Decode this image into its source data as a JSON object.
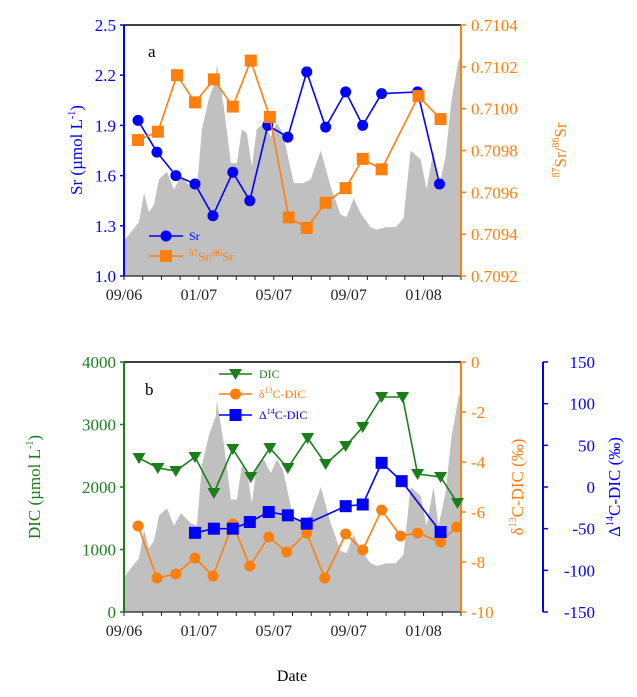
{
  "colors": {
    "blue": "#0000ff",
    "orange": "#ff7f0e",
    "green": "#1a7f1a",
    "gray_fill": "#c0c0c0",
    "axis_black": "#000000"
  },
  "shared_x": {
    "type": "date_months",
    "start": "09/06",
    "end": "03/08",
    "range_months": [
      0,
      18
    ],
    "tick_labels": [
      "09/06",
      "01/07",
      "05/07",
      "09/07",
      "01/08"
    ],
    "tick_label_months": [
      0,
      4,
      8,
      12,
      16
    ],
    "minor_ticks": "monthly",
    "xlabel": "Date"
  },
  "background_series": {
    "description": "gray shaded area (relative magnitude, no axis shown)",
    "x_months": [
      0,
      0.37,
      0.8,
      1.07,
      1.33,
      1.6,
      1.87,
      2.29,
      2.67,
      3.04,
      3.57,
      3.89,
      4.16,
      4.53,
      4.91,
      4.96,
      5.33,
      5.71,
      6.03,
      6.29,
      6.56,
      6.83,
      7.09,
      7.47,
      7.84,
      8.16,
      8.48,
      9.07,
      9.6,
      9.97,
      10.51,
      11.04,
      11.57,
      11.89,
      12.27,
      12.64,
      13.17,
      13.49,
      14.03,
      14.51,
      14.93,
      15.31,
      15.84,
      16.16,
      16.53,
      16.8,
      17.17,
      17.49,
      17.87,
      18
    ],
    "relative_values": [
      0.14,
      0.175,
      0.215,
      0.33,
      0.255,
      0.285,
      0.385,
      0.415,
      0.345,
      0.395,
      0.355,
      0.345,
      0.585,
      0.705,
      0.785,
      0.845,
      0.675,
      0.45,
      0.45,
      0.585,
      0.57,
      0.435,
      0.585,
      0.61,
      0.555,
      0.61,
      0.57,
      0.37,
      0.37,
      0.385,
      0.5,
      0.355,
      0.245,
      0.235,
      0.31,
      0.25,
      0.195,
      0.185,
      0.195,
      0.195,
      0.23,
      0.5,
      0.465,
      0.345,
      0.5,
      0.345,
      0.475,
      0.7,
      0.86,
      0.88
    ]
  },
  "chart_data": [
    {
      "type": "line",
      "panel_label": "a",
      "title": "",
      "xlabel": "",
      "x_tick_labels": [
        "09/06",
        "01/07",
        "05/07",
        "09/07",
        "01/08"
      ],
      "y_left": {
        "label_main": "Sr (µmol L",
        "label_sup": "-1",
        "label_end": ")",
        "range": [
          1.0,
          2.5
        ],
        "ticks": [
          1.0,
          1.3,
          1.6,
          1.9,
          2.2,
          2.5
        ],
        "tick_labels": [
          "1.0",
          "1.3",
          "1.6",
          "1.9",
          "2.2",
          "2.5"
        ],
        "color": "#0000ff"
      },
      "y_right": {
        "label_sup1": "87",
        "label_mid": "Sr/",
        "label_sup2": "86",
        "label_end": "Sr",
        "range": [
          0.7092,
          0.7104
        ],
        "ticks": [
          0.7092,
          0.7094,
          0.7096,
          0.7098,
          0.71,
          0.7102,
          0.7104
        ],
        "tick_labels": [
          "0.7092",
          "0.7094",
          "0.7096",
          "0.7098",
          "0.7100",
          "0.7102",
          "0.7104"
        ],
        "color": "#ff7f0e"
      },
      "series": [
        {
          "name": "Sr",
          "legend_label": "Sr",
          "axis": "left",
          "marker": "circle",
          "color": "#0000ff",
          "x_months": [
            0.75,
            1.76,
            2.77,
            3.79,
            4.75,
            5.81,
            6.72,
            7.68,
            8.75,
            9.76,
            10.77,
            11.84,
            12.75,
            13.76,
            15.68,
            16.85
          ],
          "values": [
            1.93,
            1.74,
            1.6,
            1.55,
            1.36,
            1.62,
            1.45,
            1.9,
            1.83,
            2.22,
            1.89,
            2.1,
            1.9,
            2.09,
            2.1,
            1.55
          ]
        },
        {
          "name": "87Sr/86Sr",
          "legend_label_sup1": "87",
          "legend_label_mid": "Sr/",
          "legend_label_sup2": "86",
          "legend_label_end": "Sr",
          "axis": "right",
          "marker": "square",
          "color": "#ff7f0e",
          "x_months": [
            0.75,
            1.81,
            2.83,
            3.79,
            4.8,
            5.81,
            6.77,
            7.79,
            8.8,
            9.76,
            10.77,
            11.84,
            12.75,
            13.76,
            15.73,
            16.91
          ],
          "values": [
            0.70985,
            0.70989,
            0.71016,
            0.71003,
            0.71014,
            0.71001,
            0.71023,
            0.70996,
            0.70948,
            0.70943,
            0.70955,
            0.70962,
            0.70976,
            0.70971,
            0.71006,
            0.70995
          ]
        }
      ],
      "legend": {
        "position": "bottom-left"
      }
    },
    {
      "type": "line",
      "panel_label": "b",
      "title": "",
      "xlabel": "Date",
      "x_tick_labels": [
        "09/06",
        "01/07",
        "05/07",
        "09/07",
        "01/08"
      ],
      "y_left": {
        "label_main": "DIC (µmol L",
        "label_sup": "-1",
        "label_end": ")",
        "range": [
          0,
          4000
        ],
        "ticks": [
          0,
          1000,
          2000,
          3000,
          4000
        ],
        "tick_labels": [
          "0",
          "1000",
          "2000",
          "3000",
          "4000"
        ],
        "color": "#1a7f1a"
      },
      "y_right": {
        "label_pre": "δ",
        "label_sup": "13",
        "label_end": "C-DIC (‰)",
        "range": [
          -10,
          0
        ],
        "ticks": [
          -10,
          -8,
          -6,
          -4,
          -2,
          0
        ],
        "tick_labels": [
          "-10",
          "-8",
          "-6",
          "-4",
          "-2",
          "0"
        ],
        "color": "#ff7f0e"
      },
      "y_right2": {
        "label_pre": "Δ",
        "label_sup": "14",
        "label_end": "C-DIC (‰)",
        "range": [
          -150,
          150
        ],
        "ticks": [
          -150,
          -100,
          -50,
          0,
          50,
          100,
          150
        ],
        "tick_labels": [
          "-150",
          "-100",
          "-50",
          "0",
          "50",
          "100",
          "150"
        ],
        "color": "#0000ff"
      },
      "series": [
        {
          "name": "DIC",
          "legend_label": "DIC",
          "axis": "left",
          "marker": "triangle-down",
          "color": "#1a7f1a",
          "x_months": [
            0.8,
            1.81,
            2.77,
            3.79,
            4.8,
            5.81,
            6.77,
            7.79,
            8.75,
            9.81,
            10.77,
            11.84,
            12.75,
            13.76,
            14.88,
            15.68,
            16.91,
            17.81
          ],
          "values": [
            2464,
            2304,
            2256,
            2480,
            1904,
            2608,
            2160,
            2624,
            2304,
            2784,
            2368,
            2656,
            2960,
            3440,
            3440,
            2208,
            2160,
            1744
          ]
        },
        {
          "name": "δ13C-DIC",
          "legend_pre": "δ",
          "legend_sup": "13",
          "legend_end": "C-DIC",
          "axis": "right",
          "marker": "circle",
          "color": "#ff7f0e",
          "x_months": [
            0.75,
            1.76,
            2.77,
            3.79,
            4.75,
            5.81,
            6.72,
            7.73,
            8.69,
            9.76,
            10.72,
            11.84,
            12.75,
            13.76,
            14.77,
            15.68,
            16.91,
            17.76
          ],
          "values": [
            -6.56,
            -8.64,
            -8.48,
            -7.84,
            -8.56,
            -6.48,
            -8.16,
            -7.0,
            -7.6,
            -6.84,
            -8.64,
            -6.88,
            -7.52,
            -5.92,
            -6.96,
            -6.84,
            -7.2,
            -6.6
          ]
        },
        {
          "name": "Δ14C-DIC",
          "legend_pre": "Δ",
          "legend_sup": "14",
          "legend_end": "C-DIC",
          "axis": "right2",
          "marker": "square",
          "color": "#0000ff",
          "x_months": [
            3.79,
            4.8,
            5.81,
            6.72,
            7.73,
            8.75,
            9.76,
            11.84,
            12.75,
            13.76,
            14.83,
            16.91
          ],
          "values": [
            -55,
            -50,
            -50,
            -42,
            -30,
            -34,
            -44,
            -23,
            -21,
            29,
            7,
            -54
          ]
        }
      ],
      "legend": {
        "position": "top-center"
      }
    }
  ]
}
